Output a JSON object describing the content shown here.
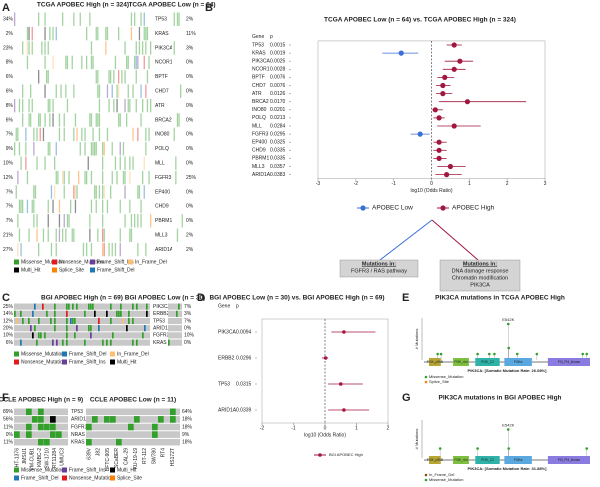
{
  "panel_labels": {
    "a": "A",
    "b": "B",
    "c": "C",
    "d": "D",
    "e": "E",
    "f": "F",
    "g": "G"
  },
  "oncoprint_a": {
    "title_high": "TCGA APOBEC High (n = 324)",
    "title_low": "TCGA APOBEC Low (n = 64)",
    "genes": [
      "TP53",
      "KRAS",
      "PIK3CA",
      "NCOR1",
      "BPTF",
      "CHD7",
      "ATR",
      "BRCA2",
      "INO80",
      "POLQ",
      "MLL",
      "FGFR3",
      "EP400",
      "CHD9",
      "PBRM1",
      "MLL3",
      "ARID1A"
    ],
    "pct_high": [
      "34%",
      "2%",
      "23%",
      "8%",
      "6%",
      "6%",
      "8%",
      "6%",
      "7%",
      "9%",
      "10%",
      "12%",
      "7%",
      "7%",
      "7%",
      "21%",
      "27%"
    ],
    "pct_low": [
      "2%",
      "11%",
      "3%",
      "0%",
      "0%",
      "0%",
      "0%",
      "0%",
      "0%",
      "0%",
      "0%",
      "25%",
      "0%",
      "0%",
      "0%",
      "2%",
      "2%"
    ],
    "legend": [
      {
        "label": "Missense_Mutation",
        "color": "#33a02c"
      },
      {
        "label": "Nonsense_Mutation",
        "color": "#e31a1c"
      },
      {
        "label": "Frame_Shift_Ins",
        "color": "#6a3d9a"
      },
      {
        "label": "In_Frame_Del",
        "color": "#fdbf6f"
      },
      {
        "label": "Multi_Hit",
        "color": "#000000"
      },
      {
        "label": "Splice_Site",
        "color": "#ff7f00"
      },
      {
        "label": "Frame_Shift_Del",
        "color": "#1f78b4"
      }
    ]
  },
  "oncoprint_c": {
    "title_high": "BGI APOBEC High (n = 69)",
    "title_low": "BGI APOBEC Low (n = 30)",
    "genes": [
      "PIK3CA",
      "ERBB2",
      "TP53",
      "ARID1A",
      "FGFR3",
      "KRAS"
    ],
    "pct_high": [
      "25%",
      "14%",
      "12%",
      "20%",
      "10%",
      "6%"
    ],
    "pct_low": [
      "7%",
      "3%",
      "7%",
      "0%",
      "10%",
      "0%"
    ],
    "legend": [
      {
        "label": "Missense_Mutation",
        "color": "#33a02c"
      },
      {
        "label": "Frame_Shift_Del",
        "color": "#1f78b4"
      },
      {
        "label": "In_Frame_Del",
        "color": "#fdbf6f"
      },
      {
        "label": "Nonsense_Mutation",
        "color": "#e31a1c"
      },
      {
        "label": "Frame_Shift_Ins",
        "color": "#6a3d9a"
      },
      {
        "label": "Multi_Hit",
        "color": "#000000"
      }
    ]
  },
  "oncoprint_f": {
    "title_high": "CCLE APOBEC High (n = 9)",
    "title_low": "CCLE APOBEC Low (n = 11)",
    "genes": [
      "TP53",
      "ARID1A",
      "FGFR3",
      "NRAS",
      "KRAS"
    ],
    "pct_high": [
      "89%",
      "56%",
      "11%",
      "0%",
      "11%"
    ],
    "pct_low": [
      "64%",
      "18%",
      "18%",
      "9%",
      "18%"
    ],
    "cell_lines_high": [
      "HT-1376",
      "JMSU1",
      "VM-CUB1",
      "KMBC-2",
      "SW-1710",
      "RT11284",
      "UMUC3"
    ],
    "cell_lines_low": [
      "639V",
      "J82",
      "BFTC-905",
      "SCaBER",
      "CAL-29",
      "KU-19-19",
      "RT-112",
      "SW780",
      "RT4",
      "HS172T"
    ],
    "legend": [
      {
        "label": "Missense_Mutation",
        "color": "#33a02c"
      },
      {
        "label": "Frame_Shift_Ins",
        "color": "#6a3d9a"
      },
      {
        "label": "Multi_Hit",
        "color": "#000000"
      },
      {
        "label": "Frame_Shift_Del",
        "color": "#1f78b4"
      },
      {
        "label": "Nonsense_Mutation",
        "color": "#e31a1c"
      },
      {
        "label": "Splice_Site",
        "color": "#ff7f00"
      }
    ]
  },
  "annotations": {
    "low_heading": "Mutations in:",
    "low_lines": [
      "FGFR3 / RAS pathway"
    ],
    "high_heading": "Mutations in:",
    "high_lines": [
      "DNA damage response",
      "Chromatin modification",
      "PIK3CA"
    ]
  },
  "chart_data": [
    {
      "type": "forest",
      "title": "TCGA APOBEC Low (n = 64) vs. TCGA APOBEC High (n = 324)",
      "col_gene": "Gene",
      "col_p": "p",
      "categories": [
        "TP53",
        "KRAS",
        "PIK3CA",
        "NCOR1",
        "BPTF",
        "CHD7",
        "ATR",
        "BRCA2",
        "INO80",
        "POLQ",
        "MLL",
        "FGFR3",
        "EP400",
        "CHD9",
        "PBRM1",
        "MLL3",
        "ARID1A"
      ],
      "p_values": [
        "0.0015",
        "0.0019",
        "0.0025",
        "0.0028",
        "0.0076",
        "0.0076",
        "0.0126",
        "0.0170",
        "0.0201",
        "0.0213",
        "0.0284",
        "0.0295",
        "0.0325",
        "0.0335",
        "0.0335",
        "0.0357",
        "0.0383"
      ],
      "series": [
        {
          "name": "APOBEC Low",
          "color": "#3a6fd8",
          "values": [
            null,
            -0.8,
            null,
            null,
            null,
            null,
            null,
            null,
            null,
            null,
            null,
            -0.3,
            null,
            null,
            null,
            null,
            null
          ],
          "ci_low": [
            null,
            -1.3,
            null,
            null,
            null,
            null,
            null,
            null,
            null,
            null,
            null,
            -0.55,
            null,
            null,
            null,
            null,
            null
          ],
          "ci_high": [
            null,
            -0.35,
            null,
            null,
            null,
            null,
            null,
            null,
            null,
            null,
            null,
            -0.05,
            null,
            null,
            null,
            null,
            null
          ]
        },
        {
          "name": "APOBEC High",
          "color": "#a0173f",
          "values": [
            0.6,
            null,
            0.75,
            0.6,
            0.35,
            0.3,
            0.3,
            0.95,
            0.1,
            0.2,
            0.6,
            null,
            0.2,
            0.2,
            0.2,
            0.5,
            0.4
          ],
          "ci_low": [
            0.4,
            null,
            0.35,
            0.3,
            0.15,
            0.12,
            0.12,
            0.2,
            0.02,
            0.05,
            0.15,
            null,
            0.05,
            0.05,
            0.05,
            0.15,
            0.1
          ],
          "ci_high": [
            0.8,
            null,
            1.1,
            0.9,
            0.6,
            0.5,
            0.55,
            2.5,
            0.3,
            0.35,
            1.3,
            null,
            0.4,
            0.4,
            0.4,
            0.9,
            0.8
          ]
        }
      ],
      "xlim": [
        -3,
        3
      ],
      "xticks": [
        -3,
        -2,
        -1,
        0,
        1,
        2,
        3
      ],
      "xlabel": "log10 (Odds Ratio)"
    },
    {
      "type": "forest",
      "title": "BGI APOBEC Low (n = 30) vs. BGI APOBEC High (n = 69)",
      "col_gene": "Gene",
      "col_p": "p",
      "categories": [
        "PIK3CA",
        "ERBB2",
        "TP53",
        "ARID1A"
      ],
      "p_values": [
        "0.0094",
        "0.0296",
        "0.0315",
        "0.0339"
      ],
      "series": [
        {
          "name": "BGI APOBEC High",
          "color": "#a0173f",
          "values": [
            0.6,
            0.02,
            0.5,
            0.6
          ],
          "ci_low": [
            0.2,
            -0.1,
            0.1,
            0.1
          ],
          "ci_high": [
            1.6,
            0.1,
            1.2,
            1.4
          ]
        }
      ],
      "xlim": [
        -2,
        2
      ],
      "xticks": [
        -2,
        -1,
        0,
        1,
        2
      ],
      "xlabel": "log10 (Odds Ratio)"
    },
    {
      "type": "lollipop",
      "title": "PIK3CA mutations in TCGA APOBEC High",
      "hotspot": "E542K",
      "ylabel": "# Mutations",
      "xlabel": "PIK3CA: [Somatic Mutation Rate: 26.08%]",
      "x": [
        88,
        110,
        345,
        420,
        453,
        542,
        545,
        600,
        726,
        1021,
        1047
      ],
      "values": [
        1,
        1,
        1,
        1,
        1,
        6,
        2,
        1,
        1,
        1,
        1
      ],
      "xlim": [
        0,
        1068
      ],
      "ylim": [
        0,
        7
      ],
      "color": "#33a02c",
      "domains": [
        {
          "name": "PI3K_p85B",
          "start": 32,
          "end": 108,
          "color": "#b8a634"
        },
        {
          "name": "PI3K_rbd",
          "start": 187,
          "end": 289,
          "color": "#7fbf3f"
        },
        {
          "name": "PI3K_C2",
          "start": 330,
          "end": 487,
          "color": "#2fb3a8"
        },
        {
          "name": "PI3Ka",
          "start": 517,
          "end": 694,
          "color": "#5aa8e0"
        },
        {
          "name": "PI3_PI4_kinase",
          "start": 797,
          "end": 1068,
          "color": "#8a7be0"
        }
      ],
      "legend": [
        {
          "label": "Missense_Mutation",
          "color": "#33a02c"
        },
        {
          "label": "Splice_Site",
          "color": "#ff7f00"
        }
      ]
    },
    {
      "type": "lollipop",
      "title": "PIK3CA mutations in BGI APOBEC High",
      "hotspot": "E542K",
      "ylabel": "# Mutations",
      "xlabel": "PIK3CA: [Somatic Mutation Rate: 31.88%]",
      "x": [
        104,
        345,
        542,
        545,
        1047
      ],
      "values": [
        1,
        1,
        3,
        1,
        1
      ],
      "xlim": [
        0,
        1068
      ],
      "ylim": [
        0,
        4
      ],
      "color": "#33a02c",
      "domains": [
        {
          "name": "PI3K_p85B",
          "start": 32,
          "end": 108,
          "color": "#b8a634"
        },
        {
          "name": "PI3K_rbd",
          "start": 187,
          "end": 289,
          "color": "#7fbf3f"
        },
        {
          "name": "PI3K_C2",
          "start": 330,
          "end": 487,
          "color": "#2fb3a8"
        },
        {
          "name": "PI3Ka",
          "start": 517,
          "end": 694,
          "color": "#5aa8e0"
        },
        {
          "name": "PI3_PI4_kinase",
          "start": 797,
          "end": 1068,
          "color": "#8a7be0"
        }
      ],
      "legend": [
        {
          "label": "In_Frame_Del",
          "color": "#8c510a"
        },
        {
          "label": "Missense_Mutation",
          "color": "#33a02c"
        }
      ]
    }
  ]
}
